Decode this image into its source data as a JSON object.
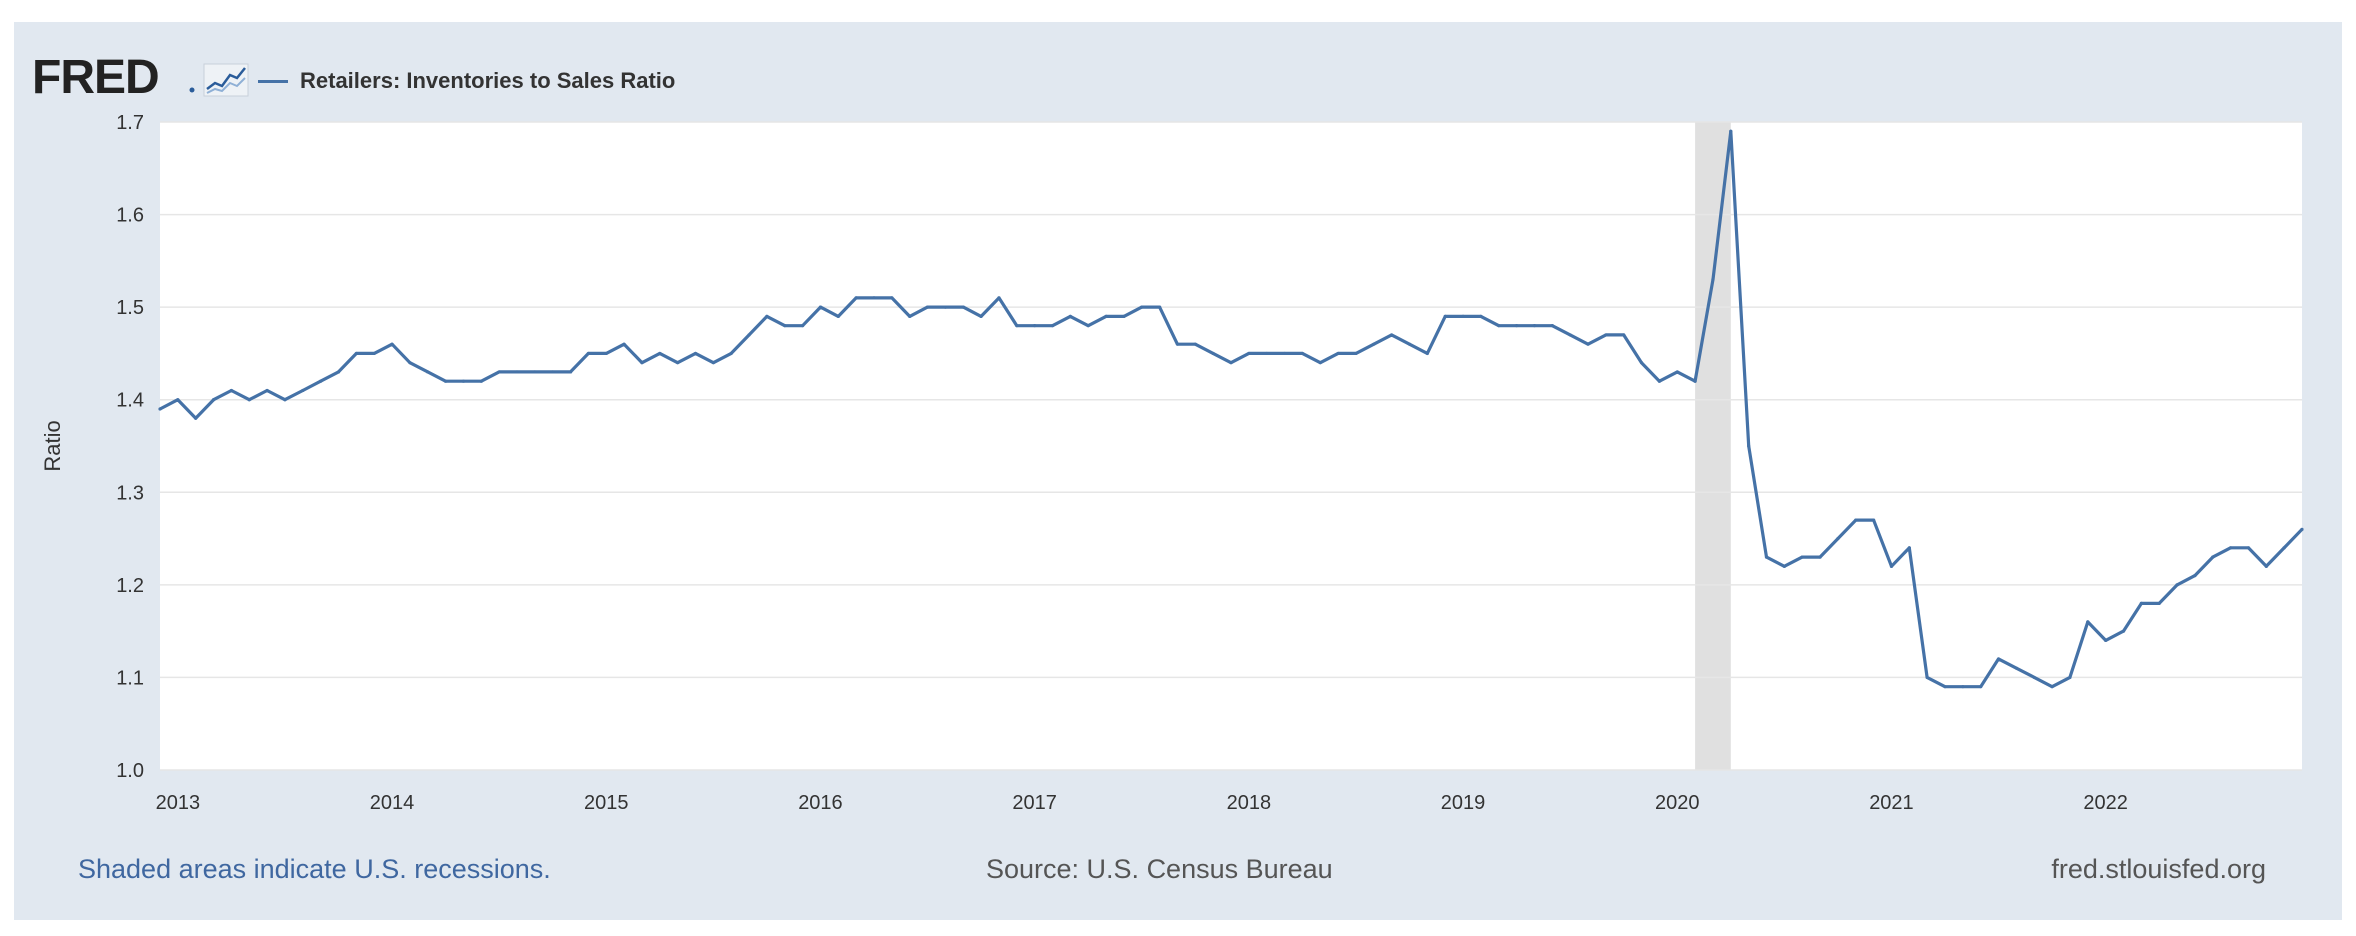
{
  "brand": {
    "logo_text": "FRED"
  },
  "footer": {
    "note": "Shaded areas indicate U.S. recessions.",
    "source": "Source: U.S. Census Bureau",
    "url": "fred.stlouisfed.org"
  },
  "colors": {
    "frame": "#e1e8f0",
    "series": "#4572a7",
    "recession": "#e0e0e0",
    "grid": "#e6e6e6"
  },
  "chart_data": {
    "type": "line",
    "title": "",
    "xlabel": "",
    "ylabel": "Ratio",
    "ylim": [
      1.0,
      1.7
    ],
    "xlim": [
      "2012-12",
      "2022-12"
    ],
    "yticks": [
      "1.0",
      "1.1",
      "1.2",
      "1.3",
      "1.4",
      "1.5",
      "1.6",
      "1.7"
    ],
    "xticks": [
      "2013",
      "2014",
      "2015",
      "2016",
      "2017",
      "2018",
      "2019",
      "2020",
      "2021",
      "2022"
    ],
    "grid": true,
    "legend": "top-left",
    "recessions": [
      {
        "start": "2020-02",
        "end": "2020-04"
      }
    ],
    "series": [
      {
        "name": "Retailers: Inventories to Sales Ratio",
        "x": [
          "2012-12",
          "2013-01",
          "2013-02",
          "2013-03",
          "2013-04",
          "2013-05",
          "2013-06",
          "2013-07",
          "2013-08",
          "2013-09",
          "2013-10",
          "2013-11",
          "2013-12",
          "2014-01",
          "2014-02",
          "2014-03",
          "2014-04",
          "2014-05",
          "2014-06",
          "2014-07",
          "2014-08",
          "2014-09",
          "2014-10",
          "2014-11",
          "2014-12",
          "2015-01",
          "2015-02",
          "2015-03",
          "2015-04",
          "2015-05",
          "2015-06",
          "2015-07",
          "2015-08",
          "2015-09",
          "2015-10",
          "2015-11",
          "2015-12",
          "2016-01",
          "2016-02",
          "2016-03",
          "2016-04",
          "2016-05",
          "2016-06",
          "2016-07",
          "2016-08",
          "2016-09",
          "2016-10",
          "2016-11",
          "2016-12",
          "2017-01",
          "2017-02",
          "2017-03",
          "2017-04",
          "2017-05",
          "2017-06",
          "2017-07",
          "2017-08",
          "2017-09",
          "2017-10",
          "2017-11",
          "2017-12",
          "2018-01",
          "2018-02",
          "2018-03",
          "2018-04",
          "2018-05",
          "2018-06",
          "2018-07",
          "2018-08",
          "2018-09",
          "2018-10",
          "2018-11",
          "2018-12",
          "2019-01",
          "2019-02",
          "2019-03",
          "2019-04",
          "2019-05",
          "2019-06",
          "2019-07",
          "2019-08",
          "2019-09",
          "2019-10",
          "2019-11",
          "2019-12",
          "2020-01",
          "2020-02",
          "2020-03",
          "2020-04",
          "2020-05",
          "2020-06",
          "2020-07",
          "2020-08",
          "2020-09",
          "2020-10",
          "2020-11",
          "2020-12",
          "2021-01",
          "2021-02",
          "2021-03",
          "2021-04",
          "2021-05",
          "2021-06",
          "2021-07",
          "2021-08",
          "2021-09",
          "2021-10",
          "2021-11",
          "2021-12",
          "2022-01",
          "2022-02",
          "2022-03",
          "2022-04",
          "2022-05",
          "2022-06",
          "2022-07",
          "2022-08",
          "2022-09",
          "2022-10",
          "2022-11",
          "2022-12"
        ],
        "values": [
          1.39,
          1.4,
          1.38,
          1.4,
          1.41,
          1.4,
          1.41,
          1.4,
          1.41,
          1.42,
          1.43,
          1.45,
          1.45,
          1.46,
          1.44,
          1.43,
          1.42,
          1.42,
          1.42,
          1.43,
          1.43,
          1.43,
          1.43,
          1.43,
          1.45,
          1.45,
          1.46,
          1.44,
          1.45,
          1.44,
          1.45,
          1.44,
          1.45,
          1.47,
          1.49,
          1.48,
          1.48,
          1.5,
          1.49,
          1.51,
          1.51,
          1.51,
          1.49,
          1.5,
          1.5,
          1.5,
          1.49,
          1.51,
          1.48,
          1.48,
          1.48,
          1.49,
          1.48,
          1.49,
          1.49,
          1.5,
          1.5,
          1.46,
          1.46,
          1.45,
          1.44,
          1.45,
          1.45,
          1.45,
          1.45,
          1.44,
          1.45,
          1.45,
          1.46,
          1.47,
          1.46,
          1.45,
          1.49,
          1.49,
          1.49,
          1.48,
          1.48,
          1.48,
          1.48,
          1.47,
          1.46,
          1.47,
          1.47,
          1.44,
          1.42,
          1.43,
          1.42,
          1.53,
          1.69,
          1.35,
          1.23,
          1.22,
          1.23,
          1.23,
          1.25,
          1.27,
          1.27,
          1.22,
          1.24,
          1.1,
          1.09,
          1.09,
          1.09,
          1.12,
          1.11,
          1.1,
          1.09,
          1.1,
          1.16,
          1.14,
          1.15,
          1.18,
          1.18,
          1.2,
          1.21,
          1.23,
          1.24,
          1.24,
          1.22,
          1.24,
          1.26
        ]
      }
    ]
  }
}
